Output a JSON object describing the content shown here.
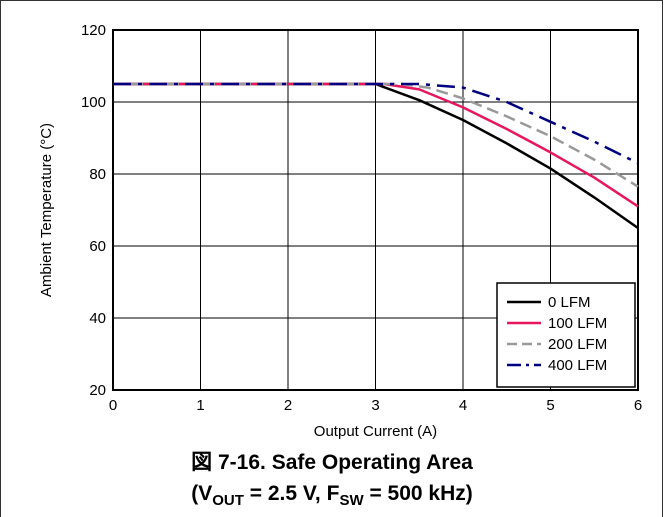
{
  "chart_data": {
    "type": "line",
    "xlabel": "Output Current (A)",
    "ylabel": "Ambient Temperature (°C)",
    "xlim": [
      0,
      6
    ],
    "ylim": [
      20,
      120
    ],
    "x_ticks": [
      "0",
      "1",
      "2",
      "3",
      "4",
      "5",
      "6"
    ],
    "y_ticks": [
      "20",
      "40",
      "60",
      "80",
      "100",
      "120"
    ],
    "grid": true,
    "legend_position": "bottom-right",
    "series": [
      {
        "name": "0 LFM",
        "color": "#000000",
        "dash": "solid",
        "x": [
          0,
          3.0,
          3.5,
          4.0,
          4.5,
          5.0,
          5.5,
          6.0
        ],
        "y": [
          105,
          105,
          100.5,
          95,
          88.5,
          81.5,
          73.5,
          65
        ]
      },
      {
        "name": "100 LFM",
        "color": "#e8175d",
        "dash": "solid",
        "x": [
          0,
          3.1,
          3.5,
          4.0,
          4.5,
          5.0,
          5.5,
          6.0
        ],
        "y": [
          105,
          105,
          103.5,
          98.5,
          92.5,
          86,
          79,
          71
        ]
      },
      {
        "name": "200 LFM",
        "color": "#999999",
        "dash": "dash",
        "x": [
          0,
          3.3,
          3.6,
          4.0,
          4.5,
          5.0,
          5.5,
          6.0
        ],
        "y": [
          105,
          105,
          104,
          101,
          96,
          90.5,
          84,
          76.5
        ]
      },
      {
        "name": "400 LFM",
        "color": "#000080",
        "dash": "dashdot",
        "x": [
          0,
          3.5,
          4.0,
          4.5,
          5.0,
          5.5,
          6.0
        ],
        "y": [
          105,
          105,
          104,
          100,
          94.5,
          89,
          83
        ]
      }
    ]
  },
  "caption": {
    "line1": "図 7-16. Safe Operating Area",
    "line2_open": "(V",
    "line2_sub1": "OUT",
    "line2_mid": " = 2.5 V, F",
    "line2_sub2": "SW",
    "line2_close": " = 500 kHz)"
  }
}
